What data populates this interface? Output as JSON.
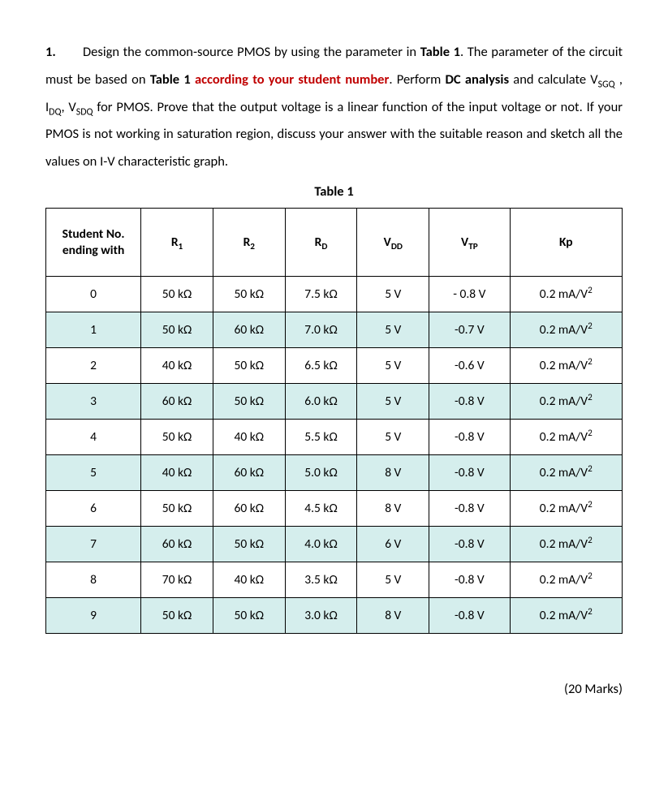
{
  "question": {
    "number": "1.",
    "text_before_table1_a": "Design the common-source PMOS by using the parameter in ",
    "table_ref_1": "Table 1",
    "text_after_table1_a": ". The parameter of the circuit must be based on ",
    "table_ref_2": "Table 1",
    "space_after_table_ref_2": " ",
    "red_phrase": "according to your student number",
    "text_after_red": ". Perform ",
    "dc_analysis": "DC analysis",
    "text_after_dc_1": " and calculate V",
    "sub_sgq": "SGQ",
    "text_comma1": " , I",
    "sub_dq": "DQ",
    "text_comma2": ", V",
    "sub_sdq": "SDQ",
    "text_tail": " for PMOS. Prove that the output voltage is a linear function of the input voltage or not. If your PMOS is not working in saturation region, discuss your answer with the suitable reason and sketch all the values on I-V characteristic graph."
  },
  "table": {
    "title": "Table 1",
    "tint_color": "#d5eeed",
    "headers": {
      "c0_line1": "Student No.",
      "c0_line2": "ending with",
      "c1_pre": "R",
      "c1_sub": "1",
      "c2_pre": "R",
      "c2_sub": "2",
      "c3_pre": "R",
      "c3_sub": "D",
      "c4_pre": "V",
      "c4_sub": "DD",
      "c5_pre": "V",
      "c5_sub": "TP",
      "c6": "Kp"
    },
    "kp_unit_pre": "0.2 mA/V",
    "kp_unit_sup": "2",
    "rows": [
      {
        "n": "0",
        "r1": "50 kΩ",
        "r2": "50 kΩ",
        "rd": "7.5 kΩ",
        "vdd": "5 V",
        "vtp": "- 0.8 V",
        "tint": false
      },
      {
        "n": "1",
        "r1": "50 kΩ",
        "r2": "60 kΩ",
        "rd": "7.0 kΩ",
        "vdd": "5 V",
        "vtp": "-0.7 V",
        "tint": true
      },
      {
        "n": "2",
        "r1": "40 kΩ",
        "r2": "50 kΩ",
        "rd": "6.5 kΩ",
        "vdd": "5 V",
        "vtp": "-0.6 V",
        "tint": false
      },
      {
        "n": "3",
        "r1": "60 kΩ",
        "r2": "50 kΩ",
        "rd": "6.0 kΩ",
        "vdd": "5 V",
        "vtp": "-0.8 V",
        "tint": true
      },
      {
        "n": "4",
        "r1": "50 kΩ",
        "r2": "40 kΩ",
        "rd": "5.5 kΩ",
        "vdd": "5 V",
        "vtp": "-0.8 V",
        "tint": false
      },
      {
        "n": "5",
        "r1": "40 kΩ",
        "r2": "60 kΩ",
        "rd": "5.0 kΩ",
        "vdd": "8 V",
        "vtp": "-0.8 V",
        "tint": true
      },
      {
        "n": "6",
        "r1": "50 kΩ",
        "r2": "60 kΩ",
        "rd": "4.5 kΩ",
        "vdd": "8 V",
        "vtp": "-0.8 V",
        "tint": false
      },
      {
        "n": "7",
        "r1": "60 kΩ",
        "r2": "50 kΩ",
        "rd": "4.0 kΩ",
        "vdd": "6 V",
        "vtp": "-0.8 V",
        "tint": true
      },
      {
        "n": "8",
        "r1": "70 kΩ",
        "r2": "40 kΩ",
        "rd": "3.5 kΩ",
        "vdd": "5 V",
        "vtp": "-0.8 V",
        "tint": false
      },
      {
        "n": "9",
        "r1": "50 kΩ",
        "r2": "50 kΩ",
        "rd": "3.0 kΩ",
        "vdd": "8 V",
        "vtp": "-0.8 V",
        "tint": true
      }
    ]
  },
  "marks": "(20 Marks)"
}
